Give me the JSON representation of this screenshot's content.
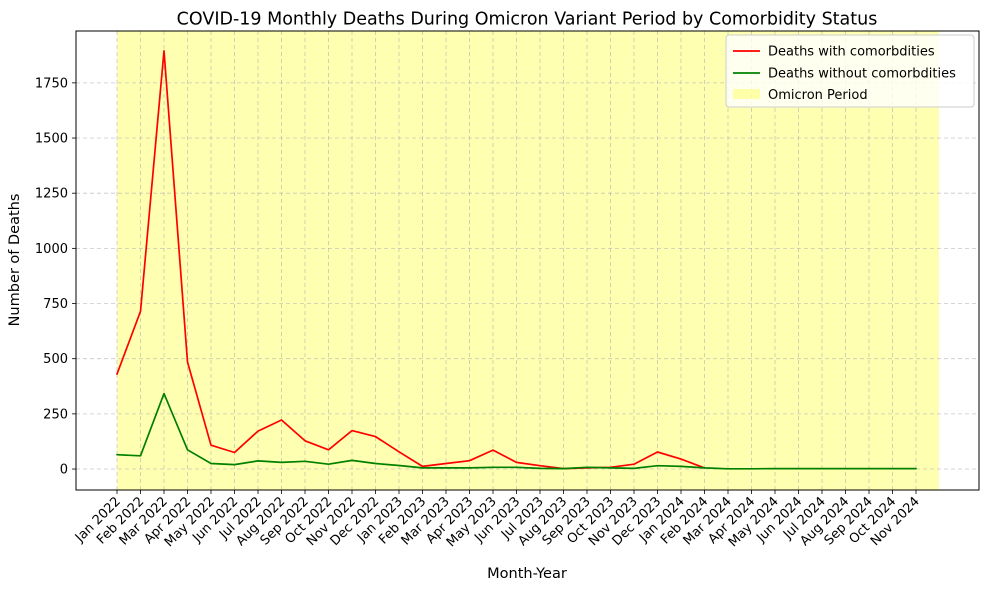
{
  "chart_data": {
    "type": "line",
    "title": "COVID-19 Monthly Deaths During Omicron Variant Period by Comorbidity Status",
    "xlabel": "Month-Year",
    "ylabel": "Number of Deaths",
    "categories": [
      "Jan 2022",
      "Feb 2022",
      "Mar 2022",
      "Apr 2022",
      "May 2022",
      "Jun 2022",
      "Jul 2022",
      "Aug 2022",
      "Sep 2022",
      "Oct 2022",
      "Nov 2022",
      "Dec 2022",
      "Jan 2023",
      "Feb 2023",
      "Mar 2023",
      "Apr 2023",
      "May 2023",
      "Jun 2023",
      "Jul 2023",
      "Aug 2023",
      "Sep 2023",
      "Oct 2023",
      "Nov 2023",
      "Dec 2023",
      "Jan 2024",
      "Feb 2024",
      "Mar 2024",
      "Apr 2024",
      "May 2024",
      "Jun 2024",
      "Jul 2024",
      "Aug 2024",
      "Sep 2024",
      "Oct 2024",
      "Nov 2024"
    ],
    "ylim": [
      -95,
      1985
    ],
    "yticks": [
      0,
      250,
      500,
      750,
      1000,
      1250,
      1500,
      1750
    ],
    "grid": true,
    "legend_position": "top-right",
    "series": [
      {
        "name": "Deaths with comorbdities",
        "color": "#ff0000",
        "values": [
          430,
          715,
          1895,
          485,
          108,
          75,
          172,
          222,
          128,
          87,
          174,
          147,
          78,
          12,
          25,
          38,
          86,
          30,
          15,
          2,
          5,
          8,
          22,
          77,
          45,
          5,
          null,
          null,
          null,
          null,
          null,
          null,
          null,
          null,
          null
        ]
      },
      {
        "name": "Deaths without comorbdities",
        "color": "#008000",
        "values": [
          65,
          60,
          342,
          87,
          25,
          20,
          37,
          30,
          35,
          22,
          39,
          25,
          16,
          5,
          5,
          5,
          8,
          8,
          3,
          2,
          8,
          5,
          3,
          15,
          12,
          5,
          1,
          1,
          2,
          2,
          2,
          2,
          2,
          2,
          2
        ]
      }
    ],
    "shaded_region": {
      "name": "Omicron Period",
      "color": "#ffff00",
      "opacity": 0.3,
      "start": "Jan 2022",
      "end": "Nov 2024",
      "extends_past_end": true
    }
  }
}
